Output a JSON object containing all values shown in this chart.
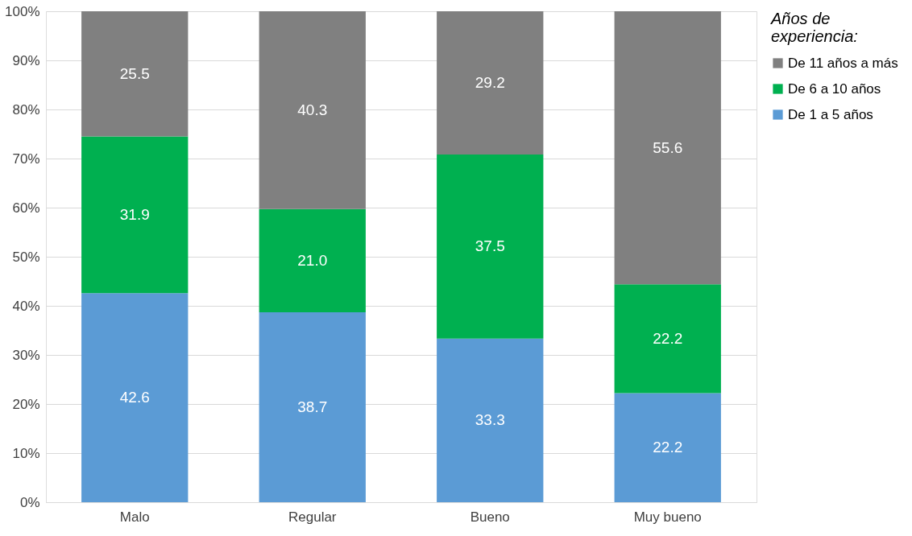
{
  "chart_data": {
    "type": "bar",
    "stacked": true,
    "categories": [
      "Malo",
      "Regular",
      "Bueno",
      "Muy bueno"
    ],
    "series": [
      {
        "name": "De 1 a 5 años",
        "color": "#5b9bd5",
        "values": [
          42.6,
          38.7,
          33.3,
          22.2
        ],
        "value_labels": [
          "42.6",
          "38.7",
          "33.3",
          "22.2"
        ]
      },
      {
        "name": "De 6 a 10 años",
        "color": "#00b050",
        "values": [
          31.9,
          21.0,
          37.5,
          22.2
        ],
        "value_labels": [
          "31.9",
          "21.0",
          "37.5",
          "22.2"
        ]
      },
      {
        "name": "De 11 años a más",
        "color": "#808080",
        "values": [
          25.5,
          40.3,
          29.2,
          55.6
        ],
        "value_labels": [
          "25.5",
          "40.3",
          "29.2",
          "55.6"
        ]
      }
    ],
    "ylim": [
      0,
      100
    ],
    "yticks": [
      {
        "value": 0,
        "label": "0%"
      },
      {
        "value": 10,
        "label": "10%"
      },
      {
        "value": 20,
        "label": "20%"
      },
      {
        "value": 30,
        "label": "30%"
      },
      {
        "value": 40,
        "label": "40%"
      },
      {
        "value": 50,
        "label": "50%"
      },
      {
        "value": 60,
        "label": "60%"
      },
      {
        "value": 70,
        "label": "70%"
      },
      {
        "value": 80,
        "label": "80%"
      },
      {
        "value": 90,
        "label": "90%"
      },
      {
        "value": 100,
        "label": "100%"
      }
    ],
    "legend_title": "Años de experiencia:",
    "legend": "right",
    "grid": "y"
  }
}
